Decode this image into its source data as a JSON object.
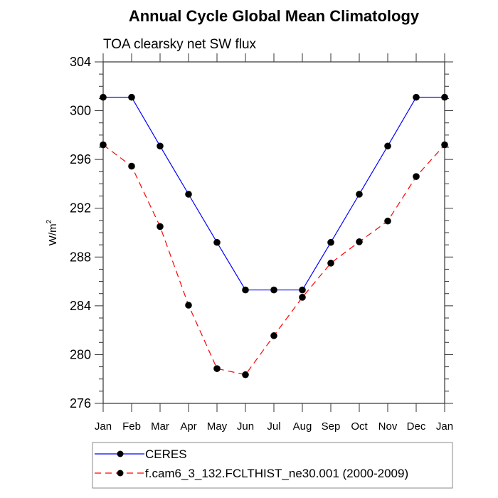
{
  "chart_data": {
    "type": "line",
    "title": "Annual Cycle Global Mean Climatology",
    "subtitle": "TOA clearsky net SW flux",
    "xlabel": "",
    "ylabel": "W/m",
    "ylabel_superscript": "2",
    "categories": [
      "Jan",
      "Feb",
      "Mar",
      "Apr",
      "May",
      "Jun",
      "Jul",
      "Aug",
      "Sep",
      "Oct",
      "Nov",
      "Dec",
      "Jan"
    ],
    "ylim": [
      276,
      304
    ],
    "yticks": [
      276,
      280,
      284,
      288,
      292,
      296,
      300,
      304
    ],
    "ytick_labels": [
      "276",
      "280",
      "284",
      "288",
      "292",
      "296",
      "300",
      "304"
    ],
    "y_minor_step": 1,
    "grid": false,
    "legend_position": "bottom",
    "series": [
      {
        "name": "CERES",
        "color": "#0000ff",
        "line_style": "solid",
        "marker": "filled-circle",
        "values": [
          301.1,
          301.1,
          297.1,
          293.15,
          289.2,
          285.3,
          285.3,
          285.3,
          289.2,
          293.15,
          297.1,
          301.1,
          301.1
        ]
      },
      {
        "name": "f.cam6_3_132.FCLTHIST_ne30.001 (2000-2009)",
        "color": "#ff0000",
        "line_style": "dashed",
        "marker": "filled-circle",
        "values": [
          297.2,
          295.45,
          290.5,
          284.05,
          278.85,
          278.35,
          281.55,
          284.7,
          287.5,
          289.25,
          290.95,
          294.6,
          297.2
        ]
      }
    ]
  }
}
